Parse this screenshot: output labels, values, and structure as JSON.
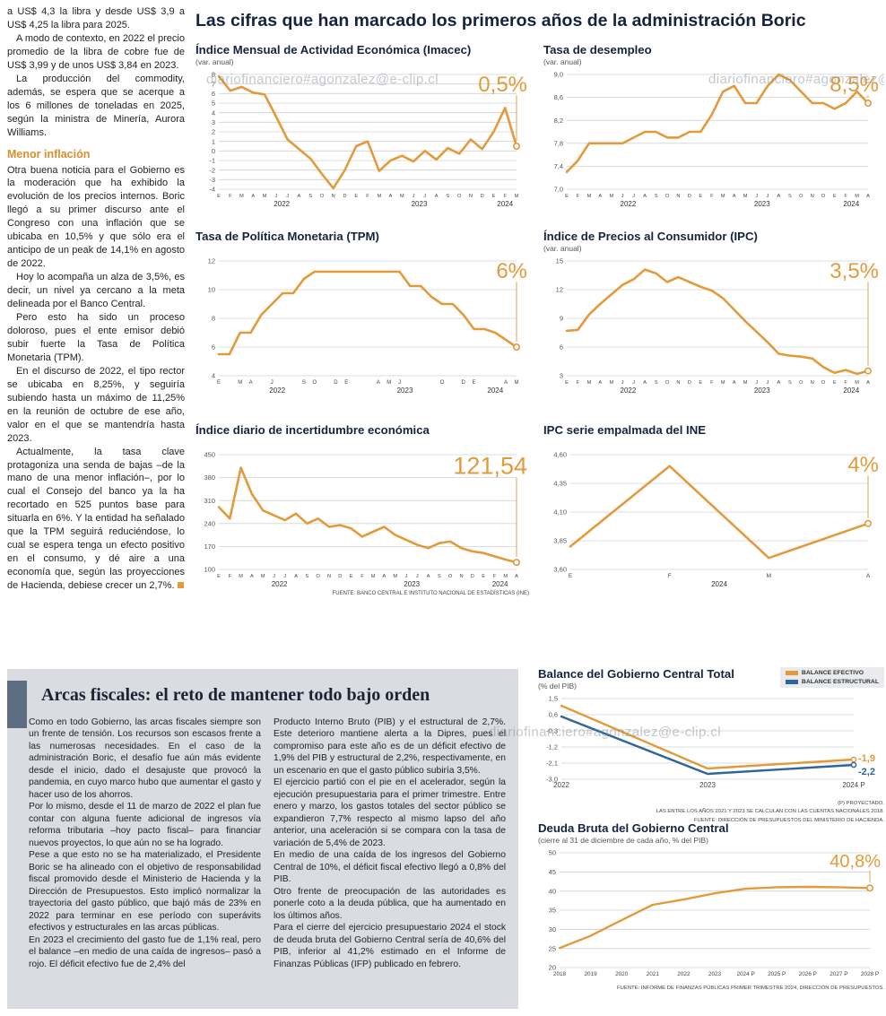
{
  "meta": {
    "watermark": "diariofinanciero#agonzalez@e-clip.cl"
  },
  "colors": {
    "accent_orange": "#E39A3B",
    "line_blue": "#2F6699",
    "title_navy": "#15243E",
    "panel_gray": "#D9DCE1",
    "headline_bar": "#5D6E83"
  },
  "left_column": {
    "intro_paragraphs": [
      "a US$ 4,3 la libra y desde US$ 3,9 a US$ 4,25 la libra para 2025.",
      "A modo de contexto, en 2022 el precio promedio de la libra de cobre fue de US$ 3,99 y de unos US$ 3,84 en 2023.",
      "La producción del commodity, además, se espera que se acerque a los 6 millones de toneladas en 2025, según la ministra de Minería, Aurora Williams."
    ],
    "subhead": "Menor inflación",
    "inflation_paragraphs": [
      "Otra buena noticia para el Gobierno es la moderación que ha exhibido la evolución de los precios internos. Boric llegó a su primer discurso ante el Congreso con una inflación que se ubicaba en 10,5% y que sólo era el anticipo de un peak de 14,1% en agosto de 2022.",
      "Hoy lo acompaña un alza de 3,5%, es decir, un nivel ya cercano a la meta delineada por el Banco Central.",
      "Pero esto ha sido un proceso doloroso, pues el ente emisor debió subir fuerte la Tasa de Política Monetaria (TPM).",
      "En el discurso de 2022, el tipo rector se ubicaba en 8,25%, y seguiría subiendo hasta un máximo de 11,25% en la reunión de octubre de ese año, valor en el que se mantendría hasta 2023.",
      "Actualmente, la tasa clave protagoniza una senda de bajas –de la mano de una menor inflación–, por lo cual el Consejo del banco ya la ha recortado en 525 puntos base para situarla en 6%. Y la entidad ha señalado que la TPM seguirá reduciéndose, lo cual se espera tenga un efecto positivo en el consumo, y dé aire a una economía que, según las proyecciones de Hacienda, debiese crecer un 2,7%."
    ]
  },
  "main": {
    "title": "Las cifras que han marcado los primeros años de la administración Boric",
    "source": "FUENTE: BANCO CENTRAL E INSTITUTO NACIONAL DE ESTADÍSTICAS (INE)"
  },
  "bottom": {
    "headline": "Arcas fiscales: el reto de mantener todo bajo orden",
    "col1_paragraphs": [
      "Como en todo Gobierno, las arcas fiscales siempre son un frente de tensión. Los recursos son escasos frente a las numerosas necesidades. En el caso de la administración Boric, el desafío fue aún más evidente desde el inicio, dado el desajuste que provocó la pandemia, en cuyo marco hubo que aumentar el gasto y hacer uso de los ahorros.",
      "Por lo mismo, desde el 11 de marzo de 2022 el plan fue contar con alguna fuente adicional de ingresos vía reforma tributaria –hoy pacto fiscal– para financiar nuevos proyectos, lo que aún no se ha logrado.",
      "Pese a que esto no se ha materializado, el Presidente Boric se ha alineado con el objetivo de responsabilidad fiscal promovido desde el Ministerio de Hacienda y la Dirección de Presupuestos. Esto implicó normalizar la trayectoria del gasto público, que bajó más de 23% en 2022 para terminar en ese período con superávits efectivos y estructurales en las arcas públicas.",
      "En 2023 el crecimiento del gasto fue de 1,1% real, pero el balance –en medio de una caída de ingresos– pasó a rojo. El déficit efectivo fue de 2,4% del"
    ],
    "col2_paragraphs": [
      "Producto Interno Bruto (PIB) y el estructural de 2,7%. Este deterioro mantiene alerta a la Dipres, pues el compromiso para este año es de un déficit efectivo de 1,9% del PIB y estructural de 2,2%, respectivamente, en un escenario en que el gasto público subiría 3,5%.",
      "El ejercicio partió con el pie en el acelerador, según la ejecución presupuestaria para el primer trimestre. Entre enero y marzo, los gastos totales del sector público se expandieron 7,7% respecto al mismo lapso del año anterior, una aceleración si se compara con la tasa de variación de 5,4% de 2023.",
      "En medio de una caída de los ingresos del Gobierno Central de 10%, el déficit fiscal efectivo llegó a 0,8% del PIB.",
      "Otro frente de preocupación de las autoridades es ponerle coto a la deuda pública, que ha aumentado en los últimos años.",
      "Para el cierre del ejercicio presupuestario 2024 el stock de deuda bruta del Gobierno Central sería de 40,6% del PIB, inferior al 41,2% estimado en el Informe de Finanzas Públicas (IFP) publicado en febrero."
    ]
  },
  "chart_data": [
    {
      "type": "line",
      "title": "Índice Mensual de Actividad Económica (Imacec)",
      "subtitle": "(var. anual)",
      "ylim": [
        -4,
        8
      ],
      "ytick_values": [
        8,
        7,
        6,
        5,
        4,
        3,
        2,
        1,
        0,
        -1,
        -2,
        -3,
        -4
      ],
      "ytick_labels": [
        "8",
        "7",
        "6",
        "5",
        "4",
        "3",
        "2",
        "1",
        "0",
        "-1",
        "-2",
        "-3",
        "-4"
      ],
      "x_labels": [
        "E",
        "F",
        "M",
        "A",
        "M",
        "J",
        "J",
        "A",
        "S",
        "O",
        "N",
        "D",
        "E",
        "F",
        "M",
        "A",
        "M",
        "J",
        "J",
        "A",
        "S",
        "O",
        "N",
        "D",
        "E",
        "F",
        "M"
      ],
      "year_groups": [
        {
          "label": "2022",
          "start": 0,
          "end": 11
        },
        {
          "label": "2023",
          "start": 12,
          "end": 23
        },
        {
          "label": "2024",
          "start": 24,
          "end": 26
        }
      ],
      "values": [
        7.8,
        6.3,
        6.7,
        6.1,
        5.9,
        3.6,
        1.2,
        0.2,
        -0.8,
        -2.4,
        -3.9,
        -2.0,
        0.5,
        1.0,
        -2.1,
        -1.0,
        -0.5,
        -1.1,
        0.0,
        -0.9,
        0.3,
        -0.3,
        1.2,
        0.2,
        2.0,
        4.5,
        0.5
      ],
      "callout": {
        "label": "0,5%",
        "size": 24
      }
    },
    {
      "type": "line",
      "title": "Tasa de desempleo",
      "subtitle": "(var. anual)",
      "ylim": [
        7.0,
        9.0
      ],
      "ytick_values": [
        9.0,
        8.6,
        8.2,
        7.8,
        7.4,
        7.0
      ],
      "ytick_labels": [
        "9,0",
        "8,6",
        "8,2",
        "7,8",
        "7,4",
        "7,0"
      ],
      "x_labels": [
        "E",
        "F",
        "M",
        "A",
        "M",
        "J",
        "J",
        "A",
        "S",
        "O",
        "N",
        "D",
        "E",
        "F",
        "M",
        "A",
        "M",
        "J",
        "J",
        "A",
        "S",
        "O",
        "N",
        "D",
        "E",
        "F",
        "M",
        "A"
      ],
      "year_groups": [
        {
          "label": "2022",
          "start": 0,
          "end": 11
        },
        {
          "label": "2023",
          "start": 12,
          "end": 23
        },
        {
          "label": "2024",
          "start": 24,
          "end": 27
        }
      ],
      "values": [
        7.3,
        7.5,
        7.8,
        7.8,
        7.8,
        7.8,
        7.9,
        8.0,
        8.0,
        7.9,
        7.9,
        8.0,
        8.0,
        8.3,
        8.7,
        8.8,
        8.5,
        8.5,
        8.8,
        9.0,
        8.9,
        8.7,
        8.5,
        8.5,
        8.4,
        8.5,
        8.7,
        8.5
      ],
      "callout": {
        "label": "8,5%",
        "size": 24
      }
    },
    {
      "type": "line",
      "title": "Tasa de Política Monetaria (TPM)",
      "subtitle": "",
      "ylim": [
        4,
        12
      ],
      "ytick_values": [
        12,
        10,
        8,
        6,
        4
      ],
      "ytick_labels": [
        "12",
        "10",
        "8",
        "6",
        "4"
      ],
      "x_labels": [
        "E",
        "",
        "M",
        "A",
        "",
        "J",
        "",
        "",
        "S",
        "O",
        "",
        "D",
        "E",
        "",
        "",
        "A",
        "M",
        "J",
        "",
        "",
        "",
        "O",
        "",
        "D",
        "E",
        "",
        "",
        "A",
        "M"
      ],
      "year_groups": [
        {
          "label": "2022",
          "start": 0,
          "end": 11
        },
        {
          "label": "2023",
          "start": 12,
          "end": 23
        },
        {
          "label": "2024",
          "start": 24,
          "end": 28
        }
      ],
      "values": [
        5.5,
        5.5,
        7.0,
        7.0,
        8.25,
        9.0,
        9.75,
        9.75,
        10.75,
        11.25,
        11.25,
        11.25,
        11.25,
        11.25,
        11.25,
        11.25,
        11.25,
        11.25,
        10.25,
        10.25,
        9.5,
        9.0,
        9.0,
        8.25,
        7.25,
        7.25,
        7.0,
        6.5,
        6.0
      ],
      "xfont": 6,
      "callout": {
        "label": "6%",
        "size": 24
      }
    },
    {
      "type": "line",
      "title": "Índice de Precios al Consumidor (IPC)",
      "subtitle": "(var. anual)",
      "ylim": [
        3,
        15
      ],
      "ytick_values": [
        15,
        12,
        9,
        6,
        3
      ],
      "ytick_labels": [
        "15",
        "12",
        "9",
        "6",
        "3"
      ],
      "x_labels": [
        "E",
        "F",
        "M",
        "A",
        "M",
        "J",
        "J",
        "A",
        "S",
        "O",
        "N",
        "D",
        "E",
        "F",
        "M",
        "A",
        "M",
        "J",
        "J",
        "A",
        "S",
        "O",
        "N",
        "D",
        "E",
        "F",
        "M",
        "A"
      ],
      "year_groups": [
        {
          "label": "2022",
          "start": 0,
          "end": 11
        },
        {
          "label": "2023",
          "start": 12,
          "end": 23
        },
        {
          "label": "2024",
          "start": 24,
          "end": 27
        }
      ],
      "values": [
        7.7,
        7.8,
        9.4,
        10.5,
        11.5,
        12.5,
        13.1,
        14.1,
        13.7,
        12.8,
        13.3,
        12.8,
        12.3,
        11.9,
        11.1,
        9.9,
        8.7,
        7.6,
        6.5,
        5.3,
        5.1,
        5.0,
        4.8,
        3.9,
        3.3,
        3.6,
        3.2,
        3.5
      ],
      "callout": {
        "label": "3,5%",
        "size": 24
      }
    },
    {
      "type": "line",
      "title": "Índice diario de incertidumbre económica",
      "subtitle": "",
      "ylim": [
        100,
        450
      ],
      "ytick_values": [
        450,
        380,
        310,
        240,
        170,
        100
      ],
      "ytick_labels": [
        "450",
        "380",
        "310",
        "240",
        "170",
        "100"
      ],
      "x_labels": [
        "E",
        "F",
        "M",
        "A",
        "M",
        "J",
        "J",
        "A",
        "S",
        "O",
        "N",
        "D",
        "E",
        "F",
        "M",
        "A",
        "M",
        "J",
        "J",
        "A",
        "S",
        "O",
        "N",
        "D",
        "E",
        "F",
        "M",
        "A"
      ],
      "year_groups": [
        {
          "label": "2022",
          "start": 0,
          "end": 11
        },
        {
          "label": "2023",
          "start": 12,
          "end": 23
        },
        {
          "label": "2024",
          "start": 24,
          "end": 27
        }
      ],
      "values": [
        290,
        255,
        410,
        330,
        280,
        265,
        250,
        270,
        240,
        255,
        230,
        235,
        225,
        200,
        215,
        230,
        205,
        190,
        175,
        165,
        180,
        185,
        165,
        155,
        150,
        140,
        130,
        121.54
      ],
      "callout": {
        "label": "121,54",
        "size": 27
      }
    },
    {
      "type": "line",
      "title": "IPC serie empalmada del INE",
      "subtitle": "",
      "ylim": [
        3.6,
        4.6
      ],
      "ytick_values": [
        4.6,
        4.35,
        4.1,
        3.85,
        3.6
      ],
      "ytick_labels": [
        "4,60",
        "4,35",
        "4,10",
        "3,85",
        "3,60"
      ],
      "x_labels": [
        "E",
        "F",
        "M",
        "A"
      ],
      "year_groups": [
        {
          "label": "2024",
          "start": 0,
          "end": 3
        }
      ],
      "values": [
        3.8,
        4.5,
        3.7,
        4.0
      ],
      "xfont": 6.5,
      "margins": {
        "l": 30
      },
      "callout": {
        "label": "4%",
        "size": 24
      }
    },
    {
      "type": "line",
      "title": "Balance del Gobierno Central Total",
      "subtitle": "(% del PIB)",
      "ylim": [
        -3.0,
        1.5
      ],
      "ytick_values": [
        1.5,
        0.6,
        -0.3,
        -1.2,
        -2.1,
        -3.0
      ],
      "ytick_labels": [
        "1,5",
        "0,6",
        "-0,3",
        "-1,2",
        "-2,1",
        "-3,0"
      ],
      "x_labels": [
        "2022",
        "2023",
        "2024 P"
      ],
      "series": [
        {
          "name": "BALANCE EFECTIVO",
          "color": "#E39A3B",
          "values": [
            1.1,
            -2.4,
            -1.9
          ]
        },
        {
          "name": "BALANCE ESTRUCTURAL",
          "color": "#2F6699",
          "values": [
            0.5,
            -2.7,
            -2.2
          ]
        }
      ],
      "end_labels": [
        {
          "series": 0,
          "label": "-1,9",
          "dy": 2
        },
        {
          "series": 1,
          "label": "-2,2",
          "dy": 11
        }
      ],
      "xfont": 8,
      "lw": 2.4,
      "margins": {
        "l": 26,
        "r": 34,
        "t": 8,
        "b": 18
      },
      "footnotes": [
        "(P) PROYECTADO.",
        "LAS ENTRE LOS AÑOS 2021 Y 2023 SE CALCULAN  CON LAS CUENTAS NACIONALES 2018.",
        "FUENTE: DIRECCIÓN DE PRESUPUESTOS DEL MINISTERIO DE HACIENDA."
      ]
    },
    {
      "type": "line",
      "title": "Deuda Bruta del Gobierno Central",
      "subtitle": "(cierre al 31 de diciembre de cada año, % del PIB)",
      "ylim": [
        20,
        50
      ],
      "ytick_values": [
        50,
        45,
        40,
        35,
        30,
        25,
        20
      ],
      "ytick_labels": [
        "50",
        "45",
        "40",
        "35",
        "30",
        "25",
        "20"
      ],
      "x_labels": [
        "2018",
        "2019",
        "2020",
        "2021",
        "2022",
        "2023",
        "2024 P",
        "2025 P",
        "2026 P",
        "2027 P",
        "2028 P"
      ],
      "values": [
        25.1,
        28.3,
        32.4,
        36.4,
        37.8,
        39.4,
        40.6,
        41.0,
        41.1,
        41.0,
        40.8
      ],
      "xfont": 6.4,
      "lw": 2.4,
      "margins": {
        "l": 24,
        "r": 16,
        "t": 8,
        "b": 14
      },
      "callout": {
        "label": "40,8%",
        "size": 20
      },
      "footnotes": [
        "FUENTE: INFORME DE FINANZAS PÚBLICAS PRIMER TRIMESTRE 2024, DIRECCIÓN DE PRESUPUESTOS."
      ]
    }
  ]
}
